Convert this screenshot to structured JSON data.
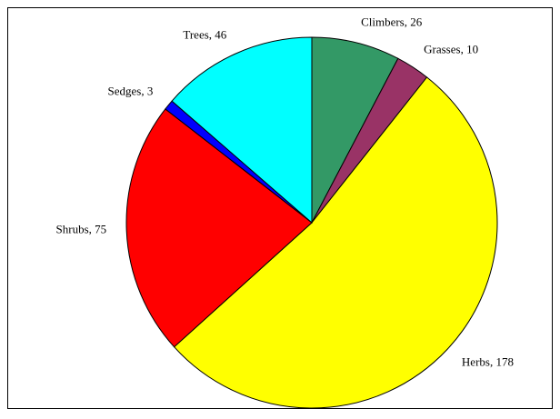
{
  "chart_data": {
    "type": "pie",
    "values": [
      26,
      10,
      178,
      75,
      3,
      46
    ],
    "value_labels": [
      "Climbers, 26",
      "Grasses, 10",
      "Herbs, 178",
      "Shrubs, 75",
      "Sedges, 3",
      "Trees, 46"
    ],
    "colors": [
      "#339966",
      "#993366",
      "#ffff00",
      "#ff0000",
      "#0000ff",
      "#00ffff"
    ]
  }
}
